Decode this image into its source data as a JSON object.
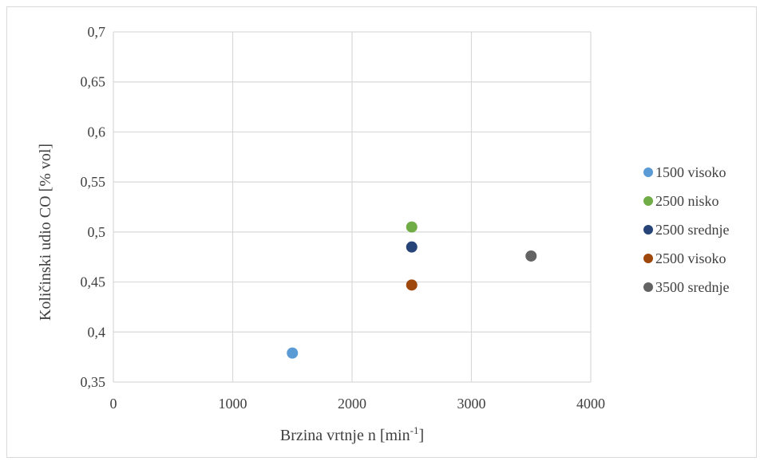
{
  "chart_data": {
    "type": "scatter",
    "title": "",
    "xlabel": "Brzina vrtnje n [min",
    "xlabel_sup": "-1",
    "xlabel_end": "]",
    "ylabel": "Količinski udio CO [% vol]",
    "xlim": [
      0,
      4000
    ],
    "ylim": [
      0.35,
      0.7
    ],
    "x_ticks": [
      0,
      1000,
      2000,
      3000,
      4000
    ],
    "x_tick_labels": [
      "0",
      "1000",
      "2000",
      "3000",
      "4000"
    ],
    "y_ticks": [
      0.35,
      0.4,
      0.45,
      0.5,
      0.55,
      0.6,
      0.65,
      0.7
    ],
    "y_tick_labels": [
      "0,35",
      "0,4",
      "0,45",
      "0,5",
      "0,55",
      "0,6",
      "0,65",
      "0,7"
    ],
    "grid": true,
    "legend_position": "right",
    "series": [
      {
        "name": "1500 visoko",
        "color": "#5b9bd5",
        "points": [
          [
            1500,
            0.379
          ]
        ]
      },
      {
        "name": "2500 nisko",
        "color": "#70ad47",
        "points": [
          [
            2500,
            0.505
          ]
        ]
      },
      {
        "name": "2500 srednje",
        "color": "#264478",
        "points": [
          [
            2500,
            0.485
          ]
        ]
      },
      {
        "name": "2500 visoko",
        "color": "#9e480e",
        "points": [
          [
            2500,
            0.447
          ]
        ]
      },
      {
        "name": "3500 srednje",
        "color": "#636363",
        "points": [
          [
            3500,
            0.476
          ]
        ]
      }
    ]
  }
}
